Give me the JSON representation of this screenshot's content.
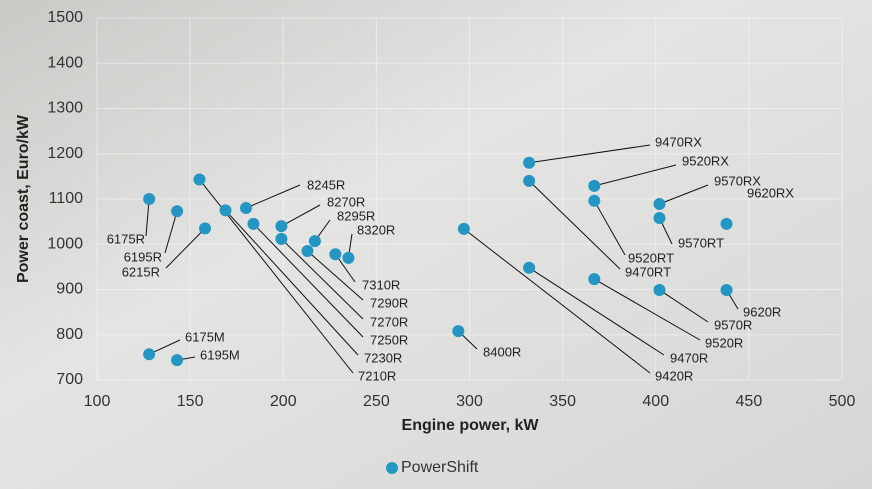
{
  "chart_data": {
    "type": "scatter",
    "x_label": "Engine power, kW",
    "y_label": "Power coast, Euro/kW",
    "xlim": [
      100,
      500
    ],
    "xticks": [
      100,
      150,
      200,
      250,
      300,
      350,
      400,
      450,
      500
    ],
    "ylim": [
      700,
      1500
    ],
    "yticks": [
      700,
      800,
      900,
      1000,
      1100,
      1200,
      1300,
      1400,
      1500
    ],
    "grid": true,
    "legend": "bottom",
    "series": [
      {
        "name": "PowerShift",
        "color": "#2496c4",
        "x": [
          128,
          143,
          158,
          155,
          169,
          180,
          184,
          199,
          199,
          217,
          213,
          228,
          235,
          294,
          297,
          332,
          332,
          332,
          367,
          367,
          367,
          402,
          402,
          402,
          438,
          438,
          128,
          143
        ],
        "values": [
          1100,
          1073,
          1035,
          1143,
          1075,
          1080,
          1045,
          1040,
          1012,
          1007,
          985,
          978,
          970,
          808,
          1034,
          1180,
          1140,
          948,
          1129,
          1096,
          923,
          1089,
          1058,
          899,
          1045,
          899,
          757,
          744
        ],
        "point_labels": [
          "6175R",
          "6195R",
          "6215R",
          "7210R",
          "7230R",
          "8245R",
          "7250R",
          "8270R",
          "7270R",
          "8295R",
          "7290R",
          "7310R",
          "8320R",
          "8400R",
          "9420R",
          "9470RX",
          "9470RT",
          "9470R",
          "9520RX",
          "9520RT",
          "9520R",
          "9570RX",
          "9570RT",
          "9570R",
          "9620RX",
          "9620R",
          "6175M",
          "6195M"
        ]
      }
    ]
  }
}
